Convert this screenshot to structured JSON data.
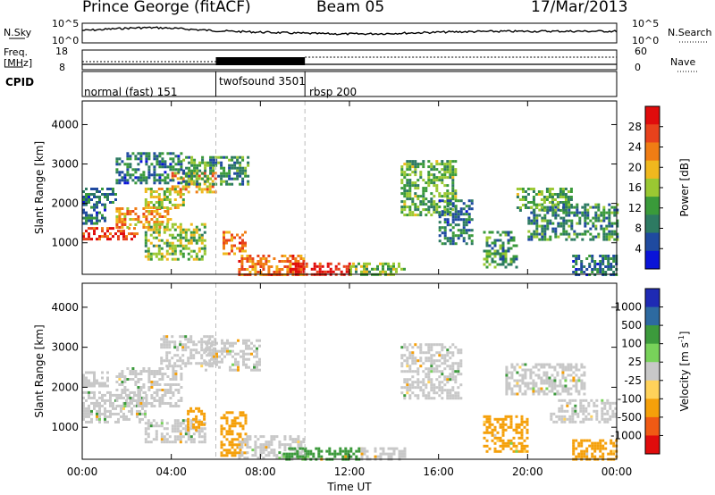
{
  "header": {
    "station": "Prince George (fitACF)",
    "beam": "Beam 05",
    "date": "17/Mar/2013"
  },
  "side_labels": {
    "nsky": "N.Sky",
    "nsearch": "N.Search",
    "freq_line1": "Freq.",
    "freq_line2": "[MHz]",
    "nave": "Nave",
    "cpid": "CPID",
    "nsky_ticks": [
      "10^5",
      "10^0"
    ],
    "nsearch_ticks": [
      "10^5",
      "10^0"
    ],
    "freq_ticks": [
      "18",
      "8"
    ],
    "nave_ticks": [
      "60",
      "0"
    ]
  },
  "cpid_segments": [
    {
      "label": "normal (fast) 151",
      "start_hour": 0,
      "end_hour": 6
    },
    {
      "label": "twofsound 3501",
      "start_hour": 6,
      "end_hour": 10
    },
    {
      "label": "rbsp 200",
      "start_hour": 10,
      "end_hour": 24
    }
  ],
  "colors": {
    "power_scale": [
      "#0a14d8",
      "#1f4aa0",
      "#2d7a62",
      "#3a9a3a",
      "#9ac832",
      "#f0b81e",
      "#f07d14",
      "#e8421c",
      "#e00c0c"
    ],
    "velocity_scale": [
      "#e00c0c",
      "#f05a14",
      "#f5a00a",
      "#ffd25a",
      "#c8c8c8",
      "#78d25a",
      "#3c9a3c",
      "#2d6aa0",
      "#1e2ab4"
    ],
    "ground_scatter": "#c8c8c8"
  },
  "chart_data": [
    {
      "type": "heatmap",
      "title": "Power",
      "xlabel": "Time UT",
      "ylabel": "Slant Range [km]",
      "x_ticks": [
        "00:00",
        "04:00",
        "08:00",
        "12:00",
        "16:00",
        "20:00",
        "00:00"
      ],
      "y_ticks": [
        "1000",
        "2000",
        "3000",
        "4000"
      ],
      "ylim": [
        200,
        4600
      ],
      "xlim_hours": [
        0,
        24
      ],
      "colorbar": {
        "label": "Power [dB]",
        "ticks": [
          "4",
          "8",
          "12",
          "16",
          "20",
          "24",
          "28"
        ],
        "range": [
          0,
          30
        ]
      },
      "regions": [
        {
          "t0": 0.0,
          "t1": 2.5,
          "r0": 1100,
          "r1": 1400,
          "level": 26
        },
        {
          "t0": 0.0,
          "t1": 1.0,
          "r0": 1400,
          "r1": 2000,
          "level": 8
        },
        {
          "t0": 1.5,
          "t1": 4.0,
          "r0": 1400,
          "r1": 1900,
          "level": 20
        },
        {
          "t0": 2.8,
          "t1": 4.5,
          "r0": 1900,
          "r1": 2400,
          "level": 16
        },
        {
          "t0": 4.0,
          "t1": 6.0,
          "r0": 2300,
          "r1": 2800,
          "level": 20
        },
        {
          "t0": 0.0,
          "t1": 1.5,
          "r0": 2000,
          "r1": 2400,
          "level": 8
        },
        {
          "t0": 1.5,
          "t1": 4.5,
          "r0": 2500,
          "r1": 3300,
          "level": 8
        },
        {
          "t0": 4.5,
          "t1": 7.5,
          "r0": 2500,
          "r1": 3200,
          "level": 10
        },
        {
          "t0": 2.8,
          "t1": 5.5,
          "r0": 600,
          "r1": 1500,
          "level": 14
        },
        {
          "t0": 6.3,
          "t1": 7.3,
          "r0": 700,
          "r1": 1300,
          "level": 22
        },
        {
          "t0": 7.0,
          "t1": 10.0,
          "r0": 200,
          "r1": 700,
          "level": 22
        },
        {
          "t0": 9.3,
          "t1": 12.0,
          "r0": 200,
          "r1": 500,
          "level": 28
        },
        {
          "t0": 12.0,
          "t1": 14.5,
          "r0": 200,
          "r1": 500,
          "level": 14
        },
        {
          "t0": 14.3,
          "t1": 16.8,
          "r0": 1700,
          "r1": 3100,
          "level": 12
        },
        {
          "t0": 16.0,
          "t1": 17.5,
          "r0": 1000,
          "r1": 2100,
          "level": 8
        },
        {
          "t0": 19.5,
          "t1": 22.0,
          "r0": 1800,
          "r1": 2400,
          "level": 12
        },
        {
          "t0": 20.0,
          "t1": 24.0,
          "r0": 1100,
          "r1": 2000,
          "level": 10
        },
        {
          "t0": 18.0,
          "t1": 19.5,
          "r0": 400,
          "r1": 1300,
          "level": 10
        },
        {
          "t0": 22.0,
          "t1": 24.0,
          "r0": 200,
          "r1": 700,
          "level": 8
        }
      ]
    },
    {
      "type": "heatmap",
      "title": "Velocity",
      "xlabel": "Time UT",
      "ylabel": "Slant Range [km]",
      "x_ticks": [
        "00:00",
        "04:00",
        "08:00",
        "12:00",
        "16:00",
        "20:00",
        "00:00"
      ],
      "y_ticks": [
        "1000",
        "2000",
        "3000",
        "4000"
      ],
      "ylim": [
        200,
        4600
      ],
      "xlim_hours": [
        0,
        24
      ],
      "colorbar": {
        "label": "Velocity [m s",
        "label_sup": "-1",
        "label_end": "]",
        "ticks": [
          "-1000",
          "-500",
          "-100",
          "-25",
          "25",
          "100",
          "500",
          "1000"
        ],
        "range": [
          -1200,
          1200
        ]
      },
      "regions": [
        {
          "t0": 0.0,
          "t1": 2.8,
          "r0": 1100,
          "r1": 1900,
          "level": 0
        },
        {
          "t0": 1.5,
          "t1": 4.5,
          "r0": 1500,
          "r1": 2500,
          "level": 0
        },
        {
          "t0": 3.5,
          "t1": 6.0,
          "r0": 2500,
          "r1": 3300,
          "level": 0
        },
        {
          "t0": 0.0,
          "t1": 1.2,
          "r0": 2000,
          "r1": 2400,
          "level": 0
        },
        {
          "t0": 2.8,
          "t1": 5.5,
          "r0": 600,
          "r1": 1200,
          "level": 0
        },
        {
          "t0": 4.7,
          "t1": 5.5,
          "r0": 900,
          "r1": 1500,
          "level": -300
        },
        {
          "t0": 5.5,
          "t1": 8.0,
          "r0": 2400,
          "r1": 3200,
          "level": 0
        },
        {
          "t0": 6.2,
          "t1": 7.4,
          "r0": 300,
          "r1": 1400,
          "level": -200
        },
        {
          "t0": 7.0,
          "t1": 10.0,
          "r0": 200,
          "r1": 800,
          "level": 0
        },
        {
          "t0": 9.0,
          "t1": 12.5,
          "r0": 200,
          "r1": 500,
          "level": 150
        },
        {
          "t0": 12.5,
          "t1": 14.5,
          "r0": 200,
          "r1": 500,
          "level": 0
        },
        {
          "t0": 14.3,
          "t1": 17.0,
          "r0": 1700,
          "r1": 3100,
          "level": 0
        },
        {
          "t0": 19.0,
          "t1": 22.5,
          "r0": 1800,
          "r1": 2600,
          "level": 0
        },
        {
          "t0": 21.0,
          "t1": 24.0,
          "r0": 1100,
          "r1": 1700,
          "level": 0
        },
        {
          "t0": 18.0,
          "t1": 20.0,
          "r0": 400,
          "r1": 1300,
          "level": -200
        },
        {
          "t0": 22.0,
          "t1": 24.0,
          "r0": 200,
          "r1": 700,
          "level": -100
        }
      ]
    }
  ]
}
